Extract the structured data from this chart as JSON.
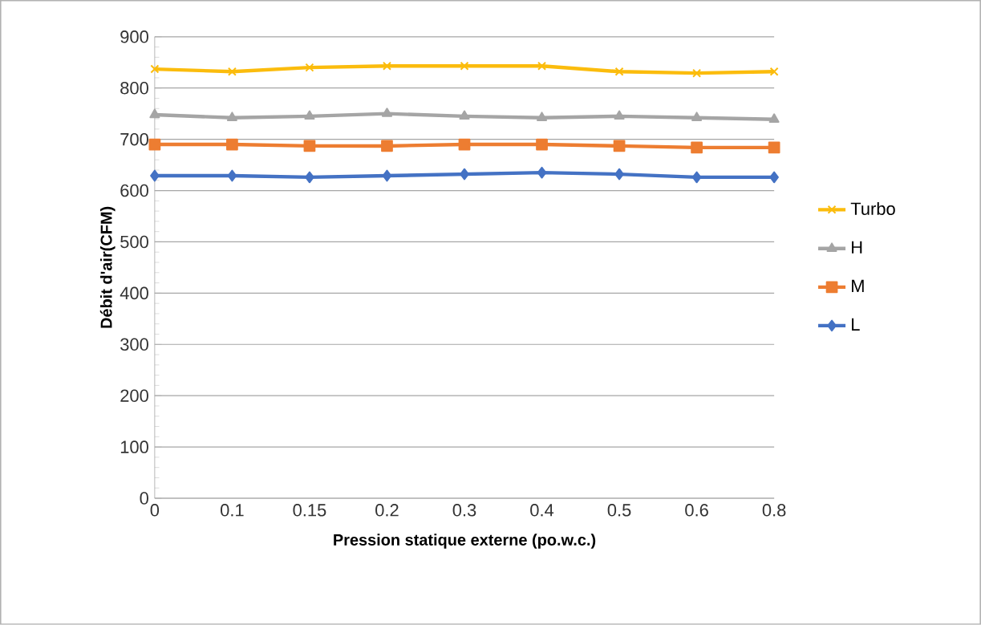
{
  "chart_data": {
    "type": "line",
    "xlabel": "Pression statique externe (po.w.c.)",
    "ylabel": "Débit d'air(CFM)",
    "categories": [
      "0",
      "0.1",
      "0.15",
      "0.2",
      "0.3",
      "0.4",
      "0.5",
      "0.6",
      "0.8"
    ],
    "series": [
      {
        "name": "Turbo",
        "color": "#fbbc0d",
        "marker": "cross",
        "values": [
          837,
          832,
          840,
          843,
          843,
          843,
          832,
          829,
          832
        ]
      },
      {
        "name": "H",
        "color": "#a5a5a5",
        "marker": "triangle",
        "values": [
          748,
          742,
          745,
          750,
          745,
          742,
          745,
          742,
          739
        ]
      },
      {
        "name": "M",
        "color": "#ed7d31",
        "marker": "square",
        "values": [
          690,
          690,
          687,
          687,
          690,
          690,
          687,
          684,
          684
        ]
      },
      {
        "name": "L",
        "color": "#4472c4",
        "marker": "diamond",
        "values": [
          629,
          629,
          626,
          629,
          632,
          635,
          632,
          626,
          626
        ]
      }
    ],
    "ylim": [
      0,
      900
    ],
    "yticks": [
      0,
      100,
      200,
      300,
      400,
      500,
      600,
      700,
      800,
      900
    ],
    "grid": "y",
    "legend": "right",
    "line_style": "solid"
  }
}
